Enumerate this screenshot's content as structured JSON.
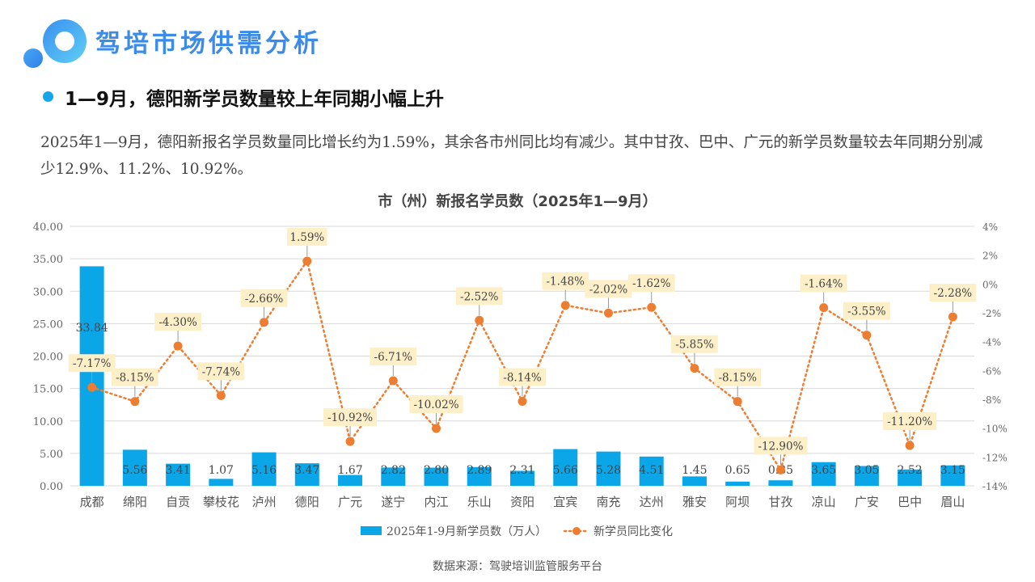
{
  "header": {
    "title": "驾培市场供需分析"
  },
  "section": {
    "subtitle": "1—9月，德阳新学员数量较上年同期小幅上升",
    "paragraph": "2025年1—9月，德阳新报名学员数量同比增长约为1.59%，其余各市州同比均有减少。其中甘孜、巴中、广元的新学员数量较去年同期分别减少12.9%、11.2%、10.92%。"
  },
  "source": "数据来源：驾驶培训监管服务平台",
  "colors": {
    "bar": "#0aa6e8",
    "line": "#ed7d31",
    "label_bg": "#fdefc8"
  },
  "chart_data": {
    "type": "bar",
    "title": "市（州）新报名学员数（2025年1—9月）",
    "categories": [
      "成都",
      "绵阳",
      "自贡",
      "攀枝花",
      "泸州",
      "德阳",
      "广元",
      "遂宁",
      "内江",
      "乐山",
      "资阳",
      "宜宾",
      "南充",
      "达州",
      "雅安",
      "阿坝",
      "甘孜",
      "凉山",
      "广安",
      "巴中",
      "眉山"
    ],
    "series": [
      {
        "name": "2025年1-9月新学员数（万人）",
        "type": "bar",
        "axis": "left",
        "values": [
          33.84,
          5.56,
          3.41,
          1.07,
          5.16,
          3.47,
          1.67,
          2.82,
          2.8,
          2.89,
          2.31,
          5.66,
          5.28,
          4.51,
          1.45,
          0.65,
          0.85,
          3.65,
          3.05,
          2.52,
          3.15
        ]
      },
      {
        "name": "新学员同比变化",
        "type": "line",
        "axis": "right",
        "values": [
          -7.17,
          -8.15,
          -4.3,
          -7.74,
          -2.66,
          1.59,
          -10.92,
          -6.71,
          -10.02,
          -2.52,
          -8.14,
          -1.48,
          -2.02,
          -1.62,
          -5.85,
          -8.15,
          -12.9,
          -1.64,
          -3.55,
          -11.2,
          -2.28
        ]
      }
    ],
    "ylim": [
      0,
      40
    ],
    "yticks": [
      "0.00",
      "5.00",
      "10.00",
      "15.00",
      "20.00",
      "25.00",
      "30.00",
      "35.00",
      "40.00"
    ],
    "y2lim": [
      -14,
      4
    ],
    "y2ticks": [
      "-14%",
      "-12%",
      "-10%",
      "-8%",
      "-6%",
      "-4%",
      "-2%",
      "0%",
      "2%",
      "4%"
    ],
    "grid": true,
    "legend": "bottom"
  }
}
